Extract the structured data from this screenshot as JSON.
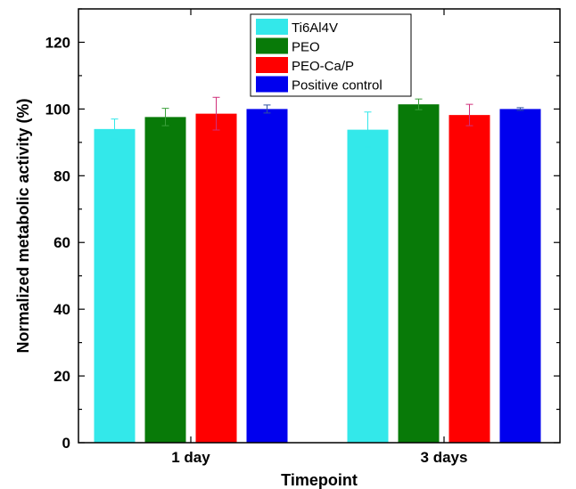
{
  "chart_data": {
    "type": "bar",
    "title": "",
    "xlabel": "Timepoint",
    "ylabel": "Normalized metabolic activity (%)",
    "categories": [
      "1 day",
      "3 days"
    ],
    "ylim": [
      0,
      130
    ],
    "yticks": [
      0,
      20,
      40,
      60,
      80,
      100,
      120
    ],
    "grid": false,
    "legend_position": "top-center",
    "series": [
      {
        "name": "Ti6Al4V",
        "color": "#33e8ea",
        "error_color": "#33e8ea",
        "values": [
          94,
          93.8
        ],
        "errors": [
          3,
          5.3
        ]
      },
      {
        "name": "PEO",
        "color": "#087a08",
        "error_color": "#3aa03a",
        "values": [
          97.6,
          101.4
        ],
        "errors": [
          2.6,
          1.6
        ]
      },
      {
        "name": "PEO-Ca/P",
        "color": "#ff0000",
        "error_color": "#d0307a",
        "values": [
          98.6,
          98.2
        ],
        "errors": [
          4.9,
          3.2
        ]
      },
      {
        "name": "Positive control",
        "color": "#0000ee",
        "error_color": "#3050a0",
        "values": [
          100,
          100
        ],
        "errors": [
          1.2,
          0.4
        ]
      }
    ]
  }
}
